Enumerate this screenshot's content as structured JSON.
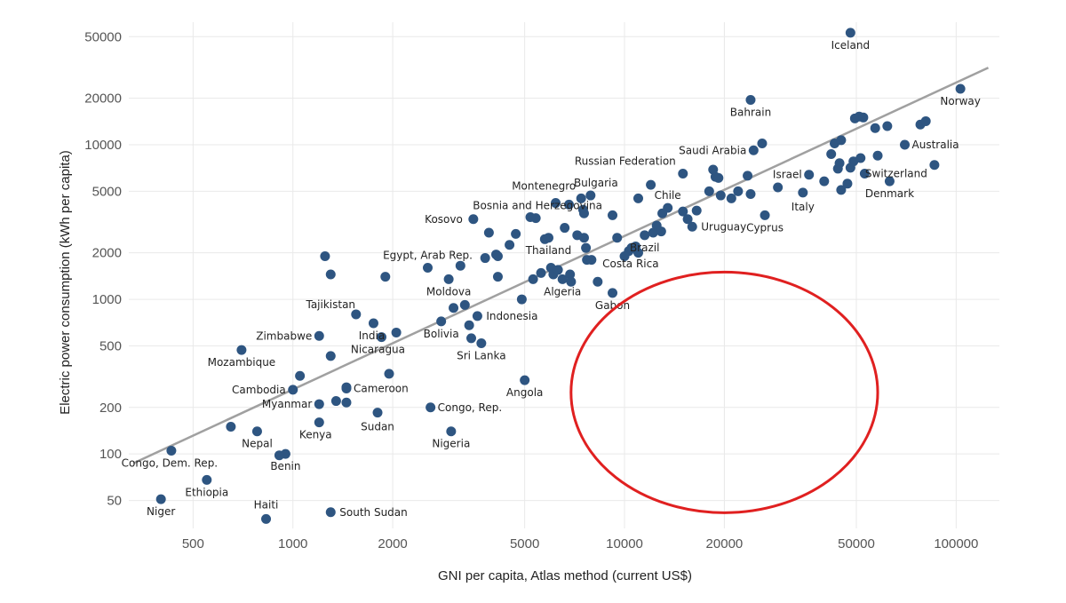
{
  "chart_data": {
    "type": "scatter",
    "xlabel": "GNI per capita, Atlas method (current US$)",
    "ylabel": "Electric power consumption (kWh per capita)",
    "x_scale": "log",
    "y_scale": "log",
    "xlim": [
      320,
      135000
    ],
    "ylim": [
      33,
      62000
    ],
    "x_ticks": [
      500,
      1000,
      2000,
      5000,
      10000,
      20000,
      50000,
      100000
    ],
    "y_ticks": [
      50,
      100,
      200,
      500,
      1000,
      2000,
      5000,
      10000,
      20000,
      50000
    ],
    "grid": true,
    "colors": {
      "points": "#2e5581",
      "trend": "#a0a0a0",
      "highlight": "#e02020"
    },
    "trend_line": {
      "x": [
        330,
        125000
      ],
      "y": [
        87,
        31500
      ]
    },
    "highlight_ellipse": {
      "cx": 20000,
      "cy": 250,
      "rx_factor": 2.9,
      "ry_factor": 6.0
    },
    "points": [
      {
        "x": 48000,
        "y": 53000,
        "label": "Iceland"
      },
      {
        "x": 103000,
        "y": 23000,
        "label": "Norway"
      },
      {
        "x": 24000,
        "y": 19500,
        "label": "Bahrain"
      },
      {
        "x": 70000,
        "y": 10000,
        "label": "Australia"
      },
      {
        "x": 24500,
        "y": 9200,
        "label": "Saudi Arabia"
      },
      {
        "x": 86000,
        "y": 7400,
        "label": "Switzerland"
      },
      {
        "x": 15000,
        "y": 6500,
        "label": "Russian Federation"
      },
      {
        "x": 36000,
        "y": 6400,
        "label": "Israel"
      },
      {
        "x": 63000,
        "y": 5800,
        "label": "Denmark"
      },
      {
        "x": 7900,
        "y": 4700,
        "label": "Bulgaria"
      },
      {
        "x": 7400,
        "y": 4500,
        "label": "Montenegro"
      },
      {
        "x": 13500,
        "y": 3900,
        "label": "Chile"
      },
      {
        "x": 34500,
        "y": 4900,
        "label": "Italy"
      },
      {
        "x": 16000,
        "y": 2950,
        "label": "Uruguay"
      },
      {
        "x": 26500,
        "y": 3500,
        "label": "Cyprus"
      },
      {
        "x": 5400,
        "y": 3350,
        "label": "Bosnia and Herzegovina"
      },
      {
        "x": 3500,
        "y": 3300,
        "label": "Kosovo"
      },
      {
        "x": 11500,
        "y": 2600,
        "label": "Brazil"
      },
      {
        "x": 5900,
        "y": 2500,
        "label": "Thailand"
      },
      {
        "x": 10300,
        "y": 2050,
        "label": "Costa Rica"
      },
      {
        "x": 2550,
        "y": 1600,
        "label": "Egypt, Arab Rep."
      },
      {
        "x": 1300,
        "y": 1450,
        "label": "Tajikistan"
      },
      {
        "x": 2950,
        "y": 1350,
        "label": "Moldova"
      },
      {
        "x": 6500,
        "y": 1350,
        "label": "Algeria"
      },
      {
        "x": 9200,
        "y": 1100,
        "label": "Gabon"
      },
      {
        "x": 3600,
        "y": 780,
        "label": "Indonesia"
      },
      {
        "x": 1750,
        "y": 700,
        "label": "India"
      },
      {
        "x": 1200,
        "y": 580,
        "label": "Zimbabwe"
      },
      {
        "x": 2800,
        "y": 720,
        "label": "Bolivia"
      },
      {
        "x": 3700,
        "y": 520,
        "label": "Sri Lanka"
      },
      {
        "x": 700,
        "y": 470,
        "label": "Mozambique"
      },
      {
        "x": 1850,
        "y": 570,
        "label": "Nicaragua"
      },
      {
        "x": 5000,
        "y": 300,
        "label": "Angola"
      },
      {
        "x": 1450,
        "y": 265,
        "label": "Cameroon"
      },
      {
        "x": 1000,
        "y": 260,
        "label": "Cambodia"
      },
      {
        "x": 1200,
        "y": 210,
        "label": "Myanmar"
      },
      {
        "x": 2600,
        "y": 200,
        "label": "Congo, Rep."
      },
      {
        "x": 1800,
        "y": 185,
        "label": "Sudan"
      },
      {
        "x": 1200,
        "y": 160,
        "label": "Kenya"
      },
      {
        "x": 780,
        "y": 140,
        "label": "Nepal"
      },
      {
        "x": 3000,
        "y": 140,
        "label": "Nigeria"
      },
      {
        "x": 950,
        "y": 100,
        "label": "Benin"
      },
      {
        "x": 430,
        "y": 105,
        "label": "Congo, Dem. Rep."
      },
      {
        "x": 550,
        "y": 68,
        "label": "Ethiopia"
      },
      {
        "x": 400,
        "y": 51,
        "label": "Niger"
      },
      {
        "x": 830,
        "y": 38,
        "label": "Haiti"
      },
      {
        "x": 1300,
        "y": 42,
        "label": "South Sudan"
      },
      {
        "x": 1250,
        "y": 1900,
        "label": ""
      },
      {
        "x": 1900,
        "y": 1400,
        "label": ""
      },
      {
        "x": 1050,
        "y": 320,
        "label": ""
      },
      {
        "x": 1300,
        "y": 430,
        "label": ""
      },
      {
        "x": 1550,
        "y": 800,
        "label": ""
      },
      {
        "x": 2050,
        "y": 610,
        "label": ""
      },
      {
        "x": 1950,
        "y": 330,
        "label": ""
      },
      {
        "x": 1350,
        "y": 220,
        "label": ""
      },
      {
        "x": 1450,
        "y": 270,
        "label": ""
      },
      {
        "x": 1450,
        "y": 215,
        "label": ""
      },
      {
        "x": 650,
        "y": 150,
        "label": ""
      },
      {
        "x": 910,
        "y": 98,
        "label": ""
      },
      {
        "x": 3050,
        "y": 880,
        "label": ""
      },
      {
        "x": 3300,
        "y": 920,
        "label": ""
      },
      {
        "x": 3400,
        "y": 680,
        "label": ""
      },
      {
        "x": 3450,
        "y": 560,
        "label": ""
      },
      {
        "x": 3200,
        "y": 1650,
        "label": ""
      },
      {
        "x": 3800,
        "y": 1850,
        "label": ""
      },
      {
        "x": 4100,
        "y": 1950,
        "label": ""
      },
      {
        "x": 4150,
        "y": 1900,
        "label": ""
      },
      {
        "x": 4150,
        "y": 1400,
        "label": ""
      },
      {
        "x": 3900,
        "y": 2700,
        "label": ""
      },
      {
        "x": 4500,
        "y": 2250,
        "label": ""
      },
      {
        "x": 4700,
        "y": 2650,
        "label": ""
      },
      {
        "x": 5200,
        "y": 3400,
        "label": ""
      },
      {
        "x": 4900,
        "y": 1000,
        "label": ""
      },
      {
        "x": 5300,
        "y": 1350,
        "label": ""
      },
      {
        "x": 5600,
        "y": 1480,
        "label": ""
      },
      {
        "x": 5750,
        "y": 2450,
        "label": ""
      },
      {
        "x": 6000,
        "y": 1600,
        "label": ""
      },
      {
        "x": 6100,
        "y": 1450,
        "label": ""
      },
      {
        "x": 6200,
        "y": 4200,
        "label": ""
      },
      {
        "x": 6300,
        "y": 1550,
        "label": ""
      },
      {
        "x": 6600,
        "y": 2900,
        "label": ""
      },
      {
        "x": 6800,
        "y": 4100,
        "label": ""
      },
      {
        "x": 6850,
        "y": 1450,
        "label": ""
      },
      {
        "x": 6900,
        "y": 1300,
        "label": ""
      },
      {
        "x": 7200,
        "y": 2600,
        "label": ""
      },
      {
        "x": 7500,
        "y": 3800,
        "label": ""
      },
      {
        "x": 7550,
        "y": 3600,
        "label": ""
      },
      {
        "x": 7550,
        "y": 2500,
        "label": ""
      },
      {
        "x": 7650,
        "y": 2150,
        "label": ""
      },
      {
        "x": 7700,
        "y": 1800,
        "label": ""
      },
      {
        "x": 7950,
        "y": 1800,
        "label": ""
      },
      {
        "x": 8300,
        "y": 1300,
        "label": ""
      },
      {
        "x": 9200,
        "y": 3500,
        "label": ""
      },
      {
        "x": 9500,
        "y": 2500,
        "label": ""
      },
      {
        "x": 10000,
        "y": 1900,
        "label": ""
      },
      {
        "x": 10500,
        "y": 2150,
        "label": ""
      },
      {
        "x": 10800,
        "y": 2200,
        "label": ""
      },
      {
        "x": 11000,
        "y": 2000,
        "label": ""
      },
      {
        "x": 11000,
        "y": 4500,
        "label": ""
      },
      {
        "x": 12000,
        "y": 5500,
        "label": ""
      },
      {
        "x": 12200,
        "y": 2700,
        "label": ""
      },
      {
        "x": 12500,
        "y": 3000,
        "label": ""
      },
      {
        "x": 12900,
        "y": 2750,
        "label": ""
      },
      {
        "x": 13000,
        "y": 3600,
        "label": ""
      },
      {
        "x": 15000,
        "y": 3700,
        "label": ""
      },
      {
        "x": 15500,
        "y": 3300,
        "label": ""
      },
      {
        "x": 16500,
        "y": 3750,
        "label": ""
      },
      {
        "x": 18000,
        "y": 5000,
        "label": ""
      },
      {
        "x": 18500,
        "y": 6900,
        "label": ""
      },
      {
        "x": 18800,
        "y": 6200,
        "label": ""
      },
      {
        "x": 19200,
        "y": 6100,
        "label": ""
      },
      {
        "x": 19500,
        "y": 4700,
        "label": ""
      },
      {
        "x": 21000,
        "y": 4500,
        "label": ""
      },
      {
        "x": 22000,
        "y": 5000,
        "label": ""
      },
      {
        "x": 23500,
        "y": 6300,
        "label": ""
      },
      {
        "x": 24000,
        "y": 4800,
        "label": ""
      },
      {
        "x": 26000,
        "y": 10200,
        "label": ""
      },
      {
        "x": 29000,
        "y": 5300,
        "label": ""
      },
      {
        "x": 40000,
        "y": 5800,
        "label": ""
      },
      {
        "x": 42000,
        "y": 8700,
        "label": ""
      },
      {
        "x": 43000,
        "y": 10200,
        "label": ""
      },
      {
        "x": 44000,
        "y": 7000,
        "label": ""
      },
      {
        "x": 44500,
        "y": 7600,
        "label": ""
      },
      {
        "x": 45000,
        "y": 10700,
        "label": ""
      },
      {
        "x": 45000,
        "y": 5100,
        "label": ""
      },
      {
        "x": 47000,
        "y": 5600,
        "label": ""
      },
      {
        "x": 48000,
        "y": 7100,
        "label": ""
      },
      {
        "x": 49000,
        "y": 7800,
        "label": ""
      },
      {
        "x": 49500,
        "y": 14800,
        "label": ""
      },
      {
        "x": 51000,
        "y": 15200,
        "label": ""
      },
      {
        "x": 51500,
        "y": 8200,
        "label": ""
      },
      {
        "x": 52500,
        "y": 15000,
        "label": ""
      },
      {
        "x": 53000,
        "y": 6500,
        "label": ""
      },
      {
        "x": 57000,
        "y": 12800,
        "label": ""
      },
      {
        "x": 58000,
        "y": 8500,
        "label": ""
      },
      {
        "x": 62000,
        "y": 13200,
        "label": ""
      },
      {
        "x": 78000,
        "y": 13500,
        "label": ""
      },
      {
        "x": 81000,
        "y": 14200,
        "label": ""
      }
    ]
  }
}
